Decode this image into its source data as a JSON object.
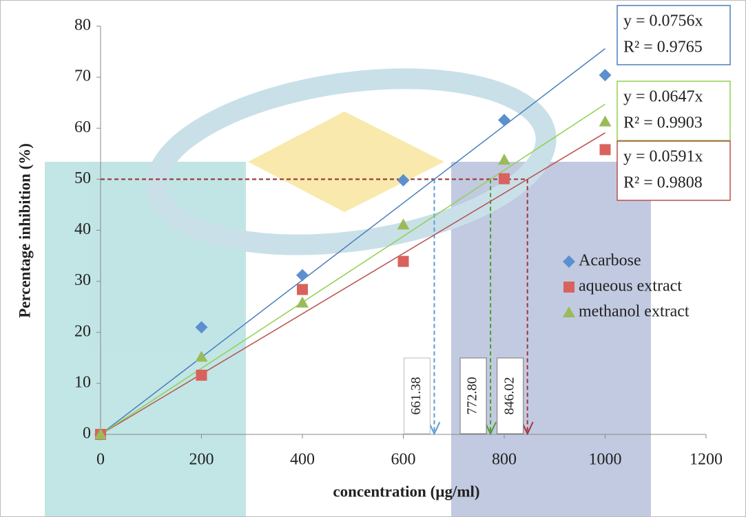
{
  "chart_data": {
    "type": "scatter",
    "xlabel": "concentration (µg/ml)",
    "ylabel": "Percentage inhibition (%)",
    "xlim": [
      0,
      1200
    ],
    "xticks": [
      0,
      200,
      400,
      600,
      800,
      1000,
      1200
    ],
    "ylim": [
      0,
      80
    ],
    "yticks": [
      0,
      10,
      20,
      30,
      40,
      50,
      60,
      70,
      80
    ],
    "legend": "right",
    "x": [
      0,
      200,
      400,
      600,
      800,
      1000
    ],
    "series": [
      {
        "name": "Acarbose",
        "color": "#5b8fd0",
        "marker": "diamond",
        "values": [
          0,
          21,
          31.2,
          49.8,
          61.6,
          70.4
        ],
        "trendline": {
          "slope": 0.0756,
          "color": "#4a7ebb",
          "equation": "y = 0.0756x",
          "r2": "R² = 0.9765"
        }
      },
      {
        "name": "aqueous extract",
        "color": "#d9625e",
        "marker": "square",
        "values": [
          0,
          11.6,
          28.4,
          33.9,
          50.1,
          55.8
        ],
        "trendline": {
          "slope": 0.0591,
          "color": "#b8504b",
          "equation": "y = 0.0591x",
          "r2": "R² = 0.9808"
        }
      },
      {
        "name": "methanol extract",
        "color": "#9bbb59",
        "marker": "triangle",
        "values": [
          0,
          15.2,
          25.8,
          41.1,
          53.8,
          61.3
        ],
        "trendline": {
          "slope": 0.0647,
          "color": "#8fd14f",
          "equation": "y = 0.0647x",
          "r2": "R² = 0.9903"
        }
      }
    ],
    "ic50_level": 50,
    "ic50": [
      {
        "value": 661.38,
        "label": "661.38",
        "color": "#5b9bd5"
      },
      {
        "value": 772.8,
        "label": "772.80",
        "color": "#4f9a2e"
      },
      {
        "value": 846.02,
        "label": "846.02",
        "color": "#a4343a"
      }
    ]
  }
}
